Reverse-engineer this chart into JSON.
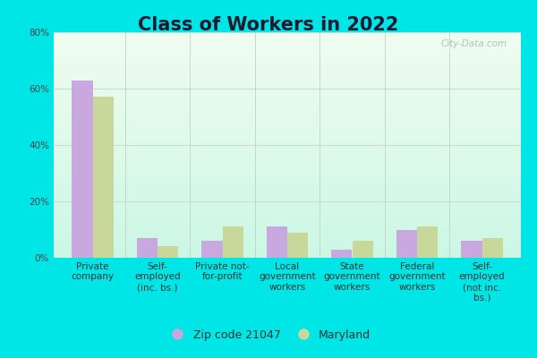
{
  "title": "Class of Workers in 2022",
  "categories": [
    "Private\ncompany",
    "Self-\nemployed\n(inc. bs.)",
    "Private not-\nfor-profit",
    "Local\ngovernment\nworkers",
    "State\ngovernment\nworkers",
    "Federal\ngovernment\nworkers",
    "Self-\nemployed\n(not inc.\nbs.)"
  ],
  "zip_values": [
    63,
    7,
    6,
    11,
    3,
    10,
    6
  ],
  "maryland_values": [
    57,
    4,
    11,
    9,
    6,
    11,
    7
  ],
  "zip_color": "#c9a8e0",
  "maryland_color": "#c8d89a",
  "background_outer": "#00e5e5",
  "ylim": [
    0,
    80
  ],
  "yticks": [
    0,
    20,
    40,
    60,
    80
  ],
  "ytick_labels": [
    "0%",
    "20%",
    "40%",
    "60%",
    "80%"
  ],
  "legend_zip_label": "Zip code 21047",
  "legend_md_label": "Maryland",
  "watermark": "City-Data.com",
  "title_fontsize": 15,
  "tick_fontsize": 7.5,
  "legend_fontsize": 9,
  "bar_width": 0.32
}
